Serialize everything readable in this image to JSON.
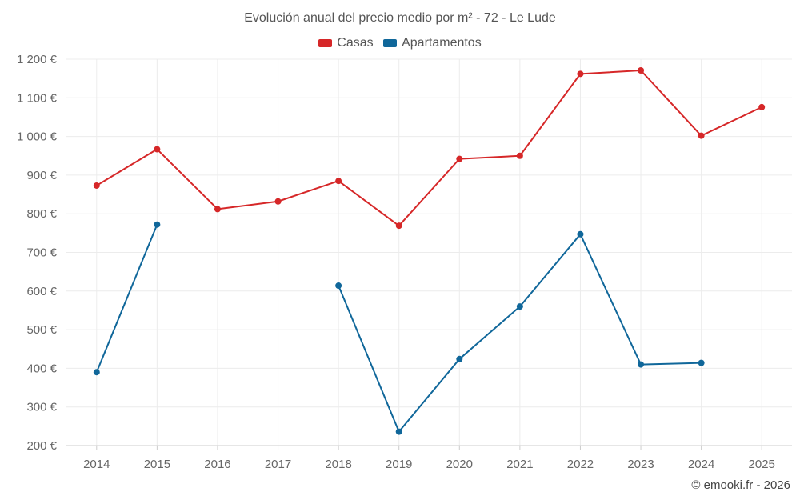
{
  "chart_data": {
    "type": "line",
    "title": "Evolución anual del precio medio por m² - 72 - Le Lude",
    "xlabel": "",
    "ylabel": "",
    "ylim": [
      200,
      1200
    ],
    "grid": true,
    "legend_position": "top-center",
    "categories": [
      "2014",
      "2015",
      "2016",
      "2017",
      "2018",
      "2019",
      "2020",
      "2021",
      "2022",
      "2023",
      "2024",
      "2025"
    ],
    "y_ticks": [
      200,
      300,
      400,
      500,
      600,
      700,
      800,
      900,
      1000,
      1100,
      1200
    ],
    "y_tick_labels": [
      "200 €",
      "300 €",
      "400 €",
      "500 €",
      "600 €",
      "700 €",
      "800 €",
      "900 €",
      "1 000 €",
      "1 100 €",
      "1 200 €"
    ],
    "series": [
      {
        "name": "Casas",
        "color": "#d62728",
        "values": [
          873,
          967,
          812,
          832,
          885,
          769,
          942,
          950,
          1162,
          1171,
          1002,
          1076
        ]
      },
      {
        "name": "Apartamentos",
        "color": "#10679a",
        "values": [
          390,
          772,
          null,
          null,
          614,
          236,
          424,
          560,
          747,
          410,
          414,
          null
        ]
      }
    ]
  },
  "credit": "© emooki.fr - 2026"
}
